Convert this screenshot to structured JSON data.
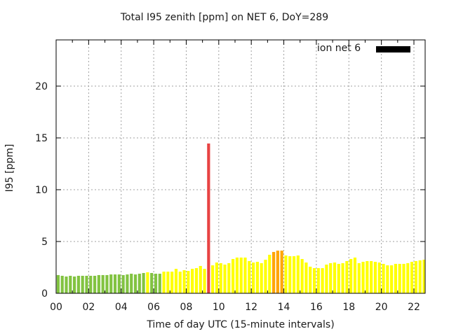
{
  "chart_data": {
    "type": "bar",
    "title": "Total I95 zenith [ppm] on NET 6, DoY=289",
    "xlabel": "Time of day UTC (15-minute intervals)",
    "ylabel": "I95 [ppm]",
    "xlim": [
      0,
      22.69
    ],
    "ylim": [
      0,
      24.46
    ],
    "x_ticks": [
      0,
      2,
      4,
      6,
      8,
      10,
      12,
      14,
      16,
      18,
      20,
      22
    ],
    "x_tick_labels": [
      "00",
      "02",
      "04",
      "06",
      "08",
      "10",
      "12",
      "14",
      "16",
      "18",
      "20",
      "22"
    ],
    "y_ticks": [
      0,
      5,
      10,
      15,
      20
    ],
    "y_tick_labels": [
      "0",
      "5",
      "10",
      "15",
      "20"
    ],
    "grid": true,
    "legend": {
      "label": "ion net 6",
      "color": "#000000",
      "placement": "top-right"
    },
    "interval_hours": 0.25,
    "colors": {
      "green": "#82c341",
      "yellow": "#ffff00",
      "orange": "#ffa500",
      "red": "#e84343",
      "grid": "#a0a0a0",
      "axis": "#000000"
    },
    "values": [
      1.76,
      1.69,
      1.62,
      1.69,
      1.62,
      1.69,
      1.69,
      1.69,
      1.69,
      1.69,
      1.76,
      1.76,
      1.76,
      1.82,
      1.82,
      1.82,
      1.76,
      1.82,
      1.89,
      1.82,
      1.89,
      1.96,
      2.03,
      1.96,
      1.89,
      1.89,
      2.09,
      2.09,
      2.09,
      2.36,
      2.09,
      2.23,
      2.16,
      2.36,
      2.43,
      2.64,
      2.36,
      14.46,
      2.7,
      2.97,
      2.91,
      2.77,
      2.91,
      3.31,
      3.45,
      3.45,
      3.45,
      3.11,
      2.97,
      3.04,
      2.91,
      3.24,
      3.72,
      3.99,
      4.12,
      4.12,
      3.65,
      3.58,
      3.58,
      3.65,
      3.31,
      2.97,
      2.57,
      2.43,
      2.43,
      2.43,
      2.77,
      2.91,
      2.97,
      2.84,
      2.91,
      3.11,
      3.31,
      3.45,
      2.91,
      3.04,
      3.11,
      3.11,
      3.04,
      2.97,
      2.84,
      2.7,
      2.7,
      2.84,
      2.84,
      2.84,
      2.91,
      3.04,
      3.11,
      3.18,
      3.24,
      3.24
    ],
    "bar_colors": [
      "green",
      "green",
      "green",
      "green",
      "green",
      "green",
      "green",
      "green",
      "green",
      "green",
      "green",
      "green",
      "green",
      "green",
      "green",
      "green",
      "green",
      "green",
      "green",
      "green",
      "green",
      "green",
      "yellow",
      "green",
      "green",
      "green",
      "yellow",
      "yellow",
      "yellow",
      "yellow",
      "yellow",
      "yellow",
      "yellow",
      "yellow",
      "yellow",
      "yellow",
      "yellow",
      "red",
      "yellow",
      "yellow",
      "yellow",
      "yellow",
      "yellow",
      "yellow",
      "yellow",
      "yellow",
      "yellow",
      "yellow",
      "yellow",
      "yellow",
      "yellow",
      "yellow",
      "yellow",
      "orange",
      "orange",
      "orange",
      "yellow",
      "yellow",
      "yellow",
      "yellow",
      "yellow",
      "yellow",
      "yellow",
      "yellow",
      "yellow",
      "yellow",
      "yellow",
      "yellow",
      "yellow",
      "yellow",
      "yellow",
      "yellow",
      "yellow",
      "yellow",
      "yellow",
      "yellow",
      "yellow",
      "yellow",
      "yellow",
      "yellow",
      "yellow",
      "yellow",
      "yellow",
      "yellow",
      "yellow",
      "yellow",
      "yellow",
      "yellow",
      "yellow",
      "yellow",
      "yellow",
      "yellow"
    ]
  }
}
